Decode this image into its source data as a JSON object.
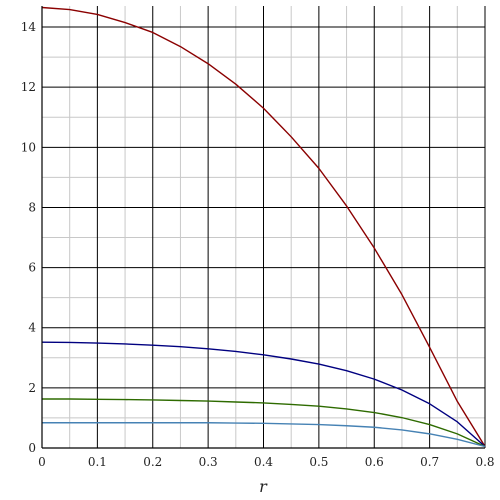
{
  "chart_data": {
    "type": "line",
    "title": "",
    "xlabel": "r",
    "ylabel": "",
    "xlim": [
      0,
      0.8
    ],
    "ylim": [
      0,
      14.7
    ],
    "grid": true,
    "legend": "none",
    "x_ticks": [
      "0",
      "0.1",
      "0.2",
      "0.3",
      "0.4",
      "0.5",
      "0.6",
      "0.7",
      "0.8"
    ],
    "y_ticks": [
      "0",
      "2",
      "4",
      "6",
      "8",
      "10",
      "12",
      "14"
    ],
    "x": [
      0,
      0.05,
      0.1,
      0.15,
      0.2,
      0.25,
      0.3,
      0.35,
      0.4,
      0.45,
      0.5,
      0.55,
      0.6,
      0.65,
      0.7,
      0.75,
      0.8
    ],
    "series": [
      {
        "color": "#8b0000",
        "values": [
          14.65,
          14.58,
          14.42,
          14.15,
          13.82,
          13.35,
          12.78,
          12.1,
          11.3,
          10.35,
          9.3,
          8.05,
          6.65,
          5.1,
          3.35,
          1.55,
          0.05
        ]
      },
      {
        "color": "#000080",
        "values": [
          3.52,
          3.51,
          3.49,
          3.46,
          3.42,
          3.37,
          3.3,
          3.21,
          3.1,
          2.96,
          2.79,
          2.57,
          2.29,
          1.93,
          1.47,
          0.87,
          0.05
        ]
      },
      {
        "color": "#2e6b00",
        "values": [
          1.63,
          1.63,
          1.62,
          1.61,
          1.6,
          1.58,
          1.56,
          1.53,
          1.5,
          1.45,
          1.39,
          1.3,
          1.18,
          1.01,
          0.78,
          0.47,
          0.05
        ]
      },
      {
        "color": "#4682b4",
        "values": [
          0.84,
          0.84,
          0.84,
          0.84,
          0.84,
          0.84,
          0.84,
          0.83,
          0.82,
          0.8,
          0.78,
          0.74,
          0.69,
          0.6,
          0.47,
          0.29,
          0.05
        ]
      }
    ]
  }
}
